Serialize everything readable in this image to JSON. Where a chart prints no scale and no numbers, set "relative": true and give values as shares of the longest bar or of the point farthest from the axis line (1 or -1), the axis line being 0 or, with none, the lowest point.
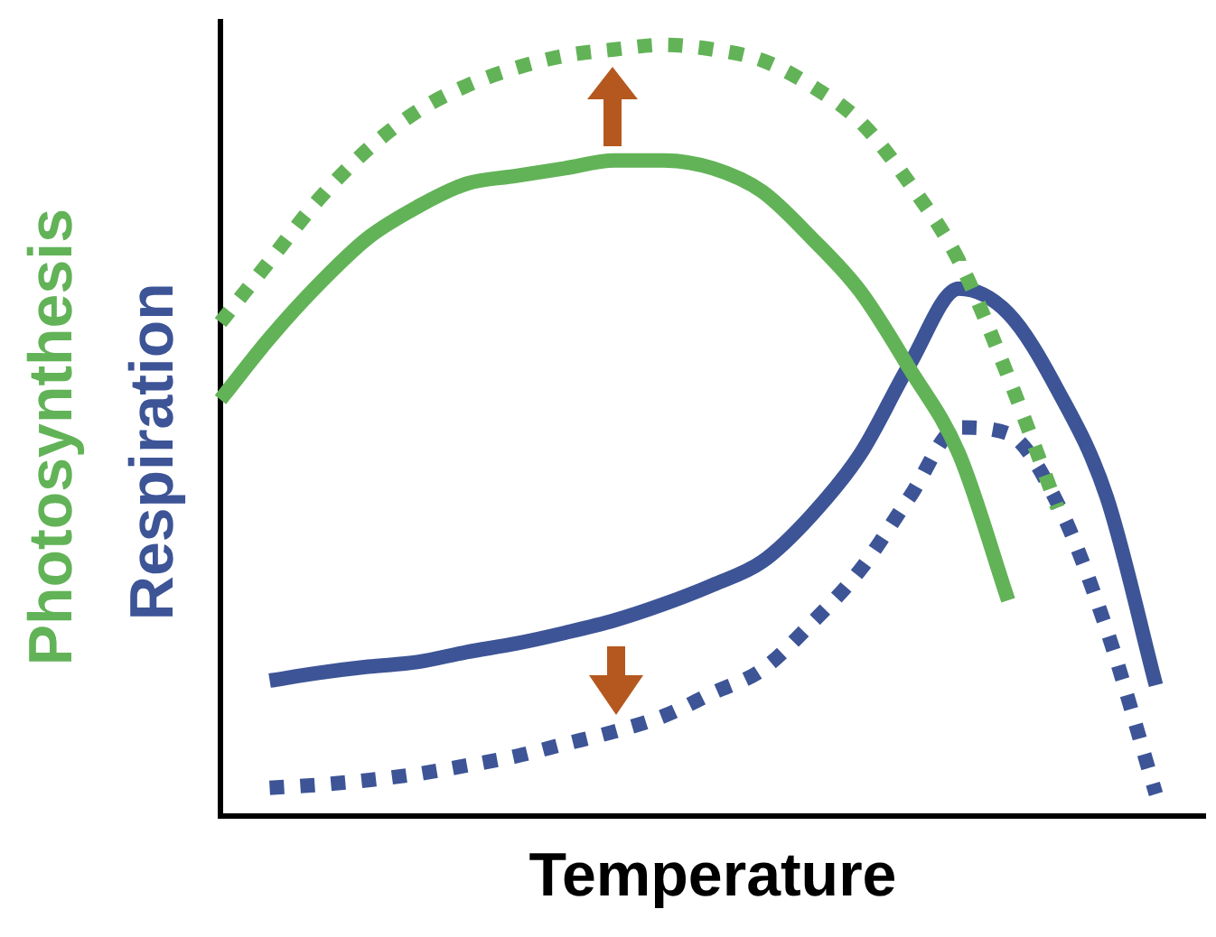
{
  "chart_data": {
    "type": "line",
    "relative": true,
    "xlabel": "Temperature",
    "legend": false,
    "marker": "none",
    "categories": [
      null,
      null,
      null,
      null,
      null,
      null,
      null,
      null,
      null,
      null,
      null,
      null,
      null,
      null,
      null,
      null,
      null,
      null,
      null,
      null,
      null
    ],
    "series": [
      {
        "name": "Photosynthesis",
        "color": "#62b357",
        "line_style": "solid",
        "values": [
          0.54,
          0.62,
          0.69,
          0.75,
          0.79,
          0.82,
          0.83,
          0.84,
          0.85,
          0.85,
          0.84,
          0.81,
          0.75,
          0.68,
          0.58,
          0.47,
          0.28,
          null,
          null,
          null,
          null
        ]
      },
      {
        "color": "#62b357",
        "line_style": "dotted",
        "values": [
          0.64,
          0.72,
          0.8,
          0.865,
          0.914,
          0.947,
          0.97,
          0.986,
          0.994,
          1,
          0.994,
          0.98,
          0.947,
          0.9,
          0.82,
          0.72,
          0.57,
          0.4,
          null,
          null,
          null
        ]
      },
      {
        "name": "Respiration",
        "color": "#3d5496",
        "line_style": "solid",
        "values": [
          null,
          0.176,
          0.186,
          0.194,
          0.2,
          0.213,
          0.224,
          0.238,
          0.254,
          0.275,
          0.3,
          0.33,
          0.39,
          0.47,
          0.586,
          0.684,
          0.652,
          0.553,
          0.414,
          0.17,
          null
        ]
      },
      {
        "color": "#3d5496",
        "line_style": "dotted",
        "values": [
          null,
          0.037,
          0.041,
          0.047,
          0.055,
          0.066,
          0.078,
          0.094,
          0.11,
          0.13,
          0.16,
          0.19,
          0.25,
          0.32,
          0.414,
          0.504,
          0.496,
          0.406,
          0.242,
          0.029,
          null
        ]
      }
    ]
  }
}
